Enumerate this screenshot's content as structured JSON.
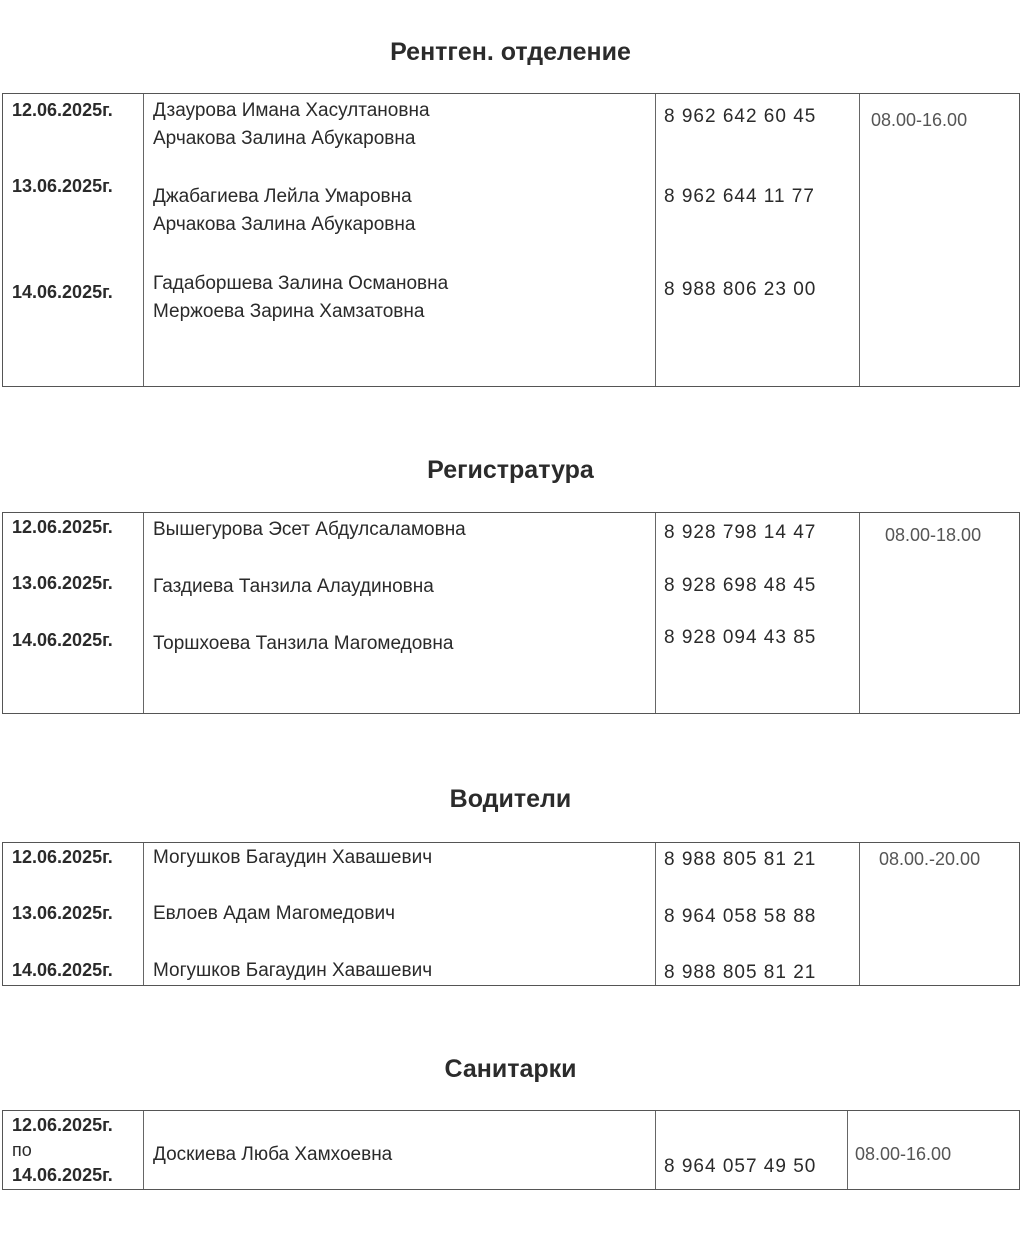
{
  "sections": [
    {
      "title": "Рентген.  отделение",
      "rows": [
        {
          "date": "12.06.2025г.",
          "names": [
            "Дзаурова Имана Хасултановна",
            "Арчакова Залина  Абукаровна"
          ],
          "phone": "8 962 642 60 45"
        },
        {
          "date": "13.06.2025г.",
          "names": [
            "Джабагиева Лейла Умаровна",
            "Арчакова Залина  Абукаровна"
          ],
          "phone": "8 962 644 11 77"
        },
        {
          "date": "14.06.2025г.",
          "names": [
            "Гадаборшева Залина Османовна",
            "Мержоева Зарина Хамзатовна"
          ],
          "phone": "8 988 806 23 00"
        }
      ],
      "hours": "08.00-16.00"
    },
    {
      "title": "Регистратура",
      "rows": [
        {
          "date": "12.06.2025г.",
          "names": [
            "Вышегурова  Эсет Абдулсаламовна"
          ],
          "phone": "8 928 798 14 47"
        },
        {
          "date": "13.06.2025г.",
          "names": [
            "Газдиева  Танзила  Алаудиновна"
          ],
          "phone": "8 928 698 48 45"
        },
        {
          "date": "14.06.2025г.",
          "names": [
            "Торшхоева  Танзила  Магомедовна"
          ],
          "phone": "8 928 094 43 85"
        }
      ],
      "hours": "08.00-18.00"
    },
    {
      "title": "Водители",
      "rows": [
        {
          "date": "12.06.2025г.",
          "names": [
            "Могушков  Багаудин  Хавашевич"
          ],
          "phone": "8 988 805 81 21"
        },
        {
          "date": "13.06.2025г.",
          "names": [
            "Евлоев  Адам  Магомедович"
          ],
          "phone": "8 964 058 58 88"
        },
        {
          "date": "14.06.2025г.",
          "names": [
            "Могушков  Багаудин  Хавашевич"
          ],
          "phone": "8 988 805 81 21"
        }
      ],
      "hours": "08.00.-20.00"
    },
    {
      "title": "Санитарки",
      "rows": [
        {
          "date_from": "12.06.2025г.",
          "date_sep": "по",
          "date_to": "14.06.2025г.",
          "names": [
            "Доскиева  Люба  Хамхоевна"
          ],
          "phone": "8 964 057 49 50"
        }
      ],
      "hours": "08.00-16.00"
    }
  ]
}
